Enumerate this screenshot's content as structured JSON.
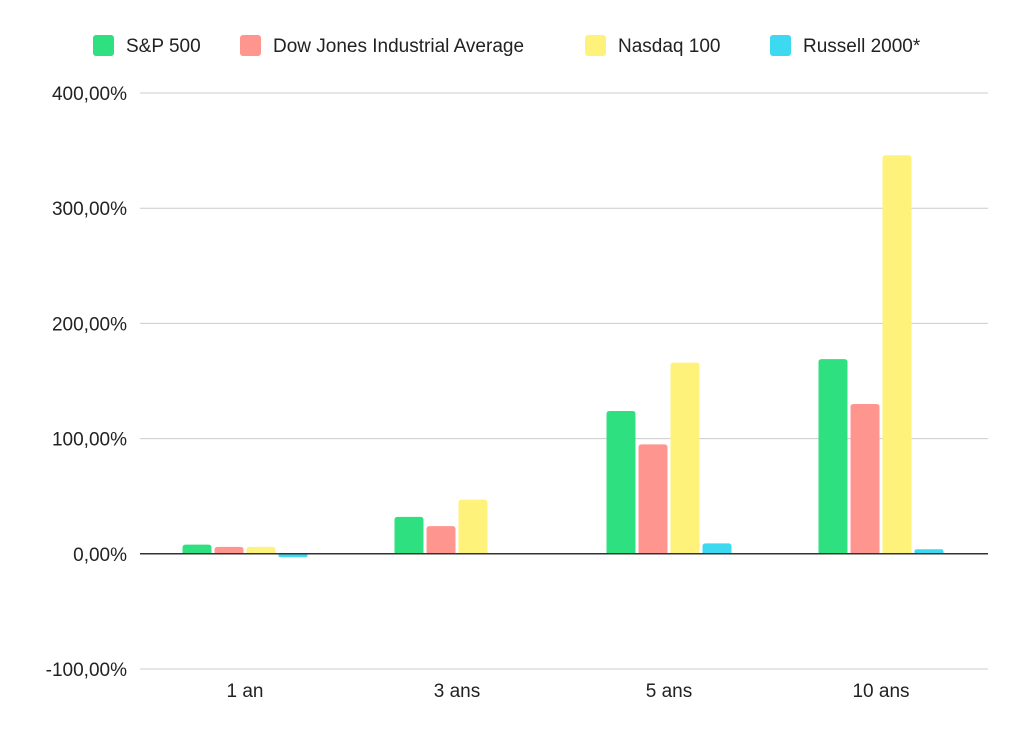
{
  "chart_data": {
    "type": "bar",
    "title": "",
    "xlabel": "",
    "ylabel": "",
    "categories": [
      "1 an",
      "3 ans",
      "5 ans",
      "10 ans"
    ],
    "series": [
      {
        "name": "S&P 500",
        "color": "#2ee07f",
        "values": [
          8,
          32,
          124,
          169
        ]
      },
      {
        "name": "Dow Jones Industrial Average",
        "color": "#ff958f",
        "values": [
          6,
          24,
          95,
          130
        ]
      },
      {
        "name": "Nasdaq 100",
        "color": "#fff27a",
        "values": [
          6,
          47,
          166,
          346
        ]
      },
      {
        "name": "Russell 2000*",
        "color": "#3dd9f0",
        "values": [
          -3,
          0,
          9,
          4
        ]
      }
    ],
    "ylim": [
      -100,
      400
    ],
    "yticks": [
      {
        "value": 400,
        "label": "400,00%"
      },
      {
        "value": 300,
        "label": "300,00%"
      },
      {
        "value": 200,
        "label": "200,00%"
      },
      {
        "value": 100,
        "label": "100,00%"
      },
      {
        "value": 0,
        "label": "0,00%"
      },
      {
        "value": -100,
        "label": "-100,00%"
      }
    ],
    "grid": true,
    "legend_position": "top"
  }
}
